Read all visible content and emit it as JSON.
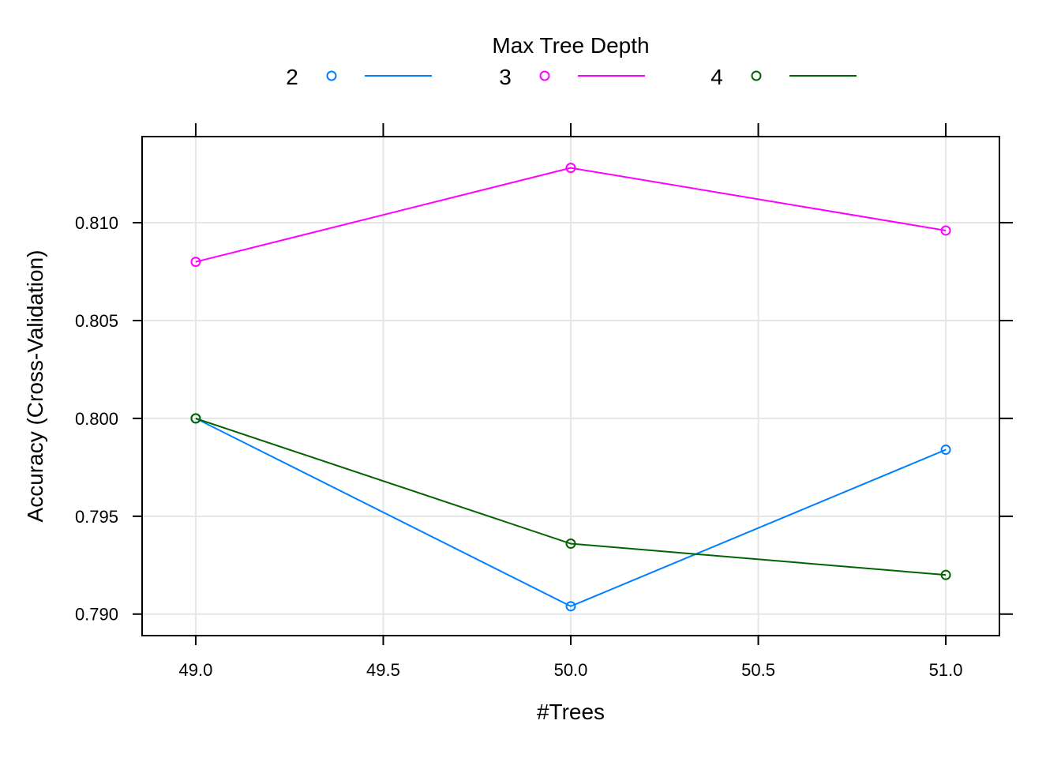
{
  "chart_data": {
    "type": "line",
    "legend": {
      "title": "Max Tree Depth",
      "placement": "top"
    },
    "xlabel": "#Trees",
    "ylabel": "Accuracy (Cross-Validation)",
    "x": [
      49,
      50,
      51
    ],
    "x_ticks": [
      "49.0",
      "49.5",
      "50.0",
      "50.5",
      "51.0"
    ],
    "x_tick_values": [
      49.0,
      49.5,
      50.0,
      50.5,
      51.0
    ],
    "y_ticks": [
      "0.790",
      "0.795",
      "0.800",
      "0.805",
      "0.810"
    ],
    "y_tick_values": [
      0.79,
      0.795,
      0.8,
      0.805,
      0.81
    ],
    "xlim": [
      48.857,
      51.143
    ],
    "ylim": [
      0.7889,
      0.8144
    ],
    "grid": true,
    "series": [
      {
        "name": "2",
        "color": "#0080ff",
        "values": [
          0.8,
          0.7904,
          0.7984
        ]
      },
      {
        "name": "3",
        "color": "#ff00ff",
        "values": [
          0.808,
          0.8128,
          0.8096
        ]
      },
      {
        "name": "4",
        "color": "#006400",
        "values": [
          0.8,
          0.7936,
          0.792
        ]
      }
    ]
  }
}
